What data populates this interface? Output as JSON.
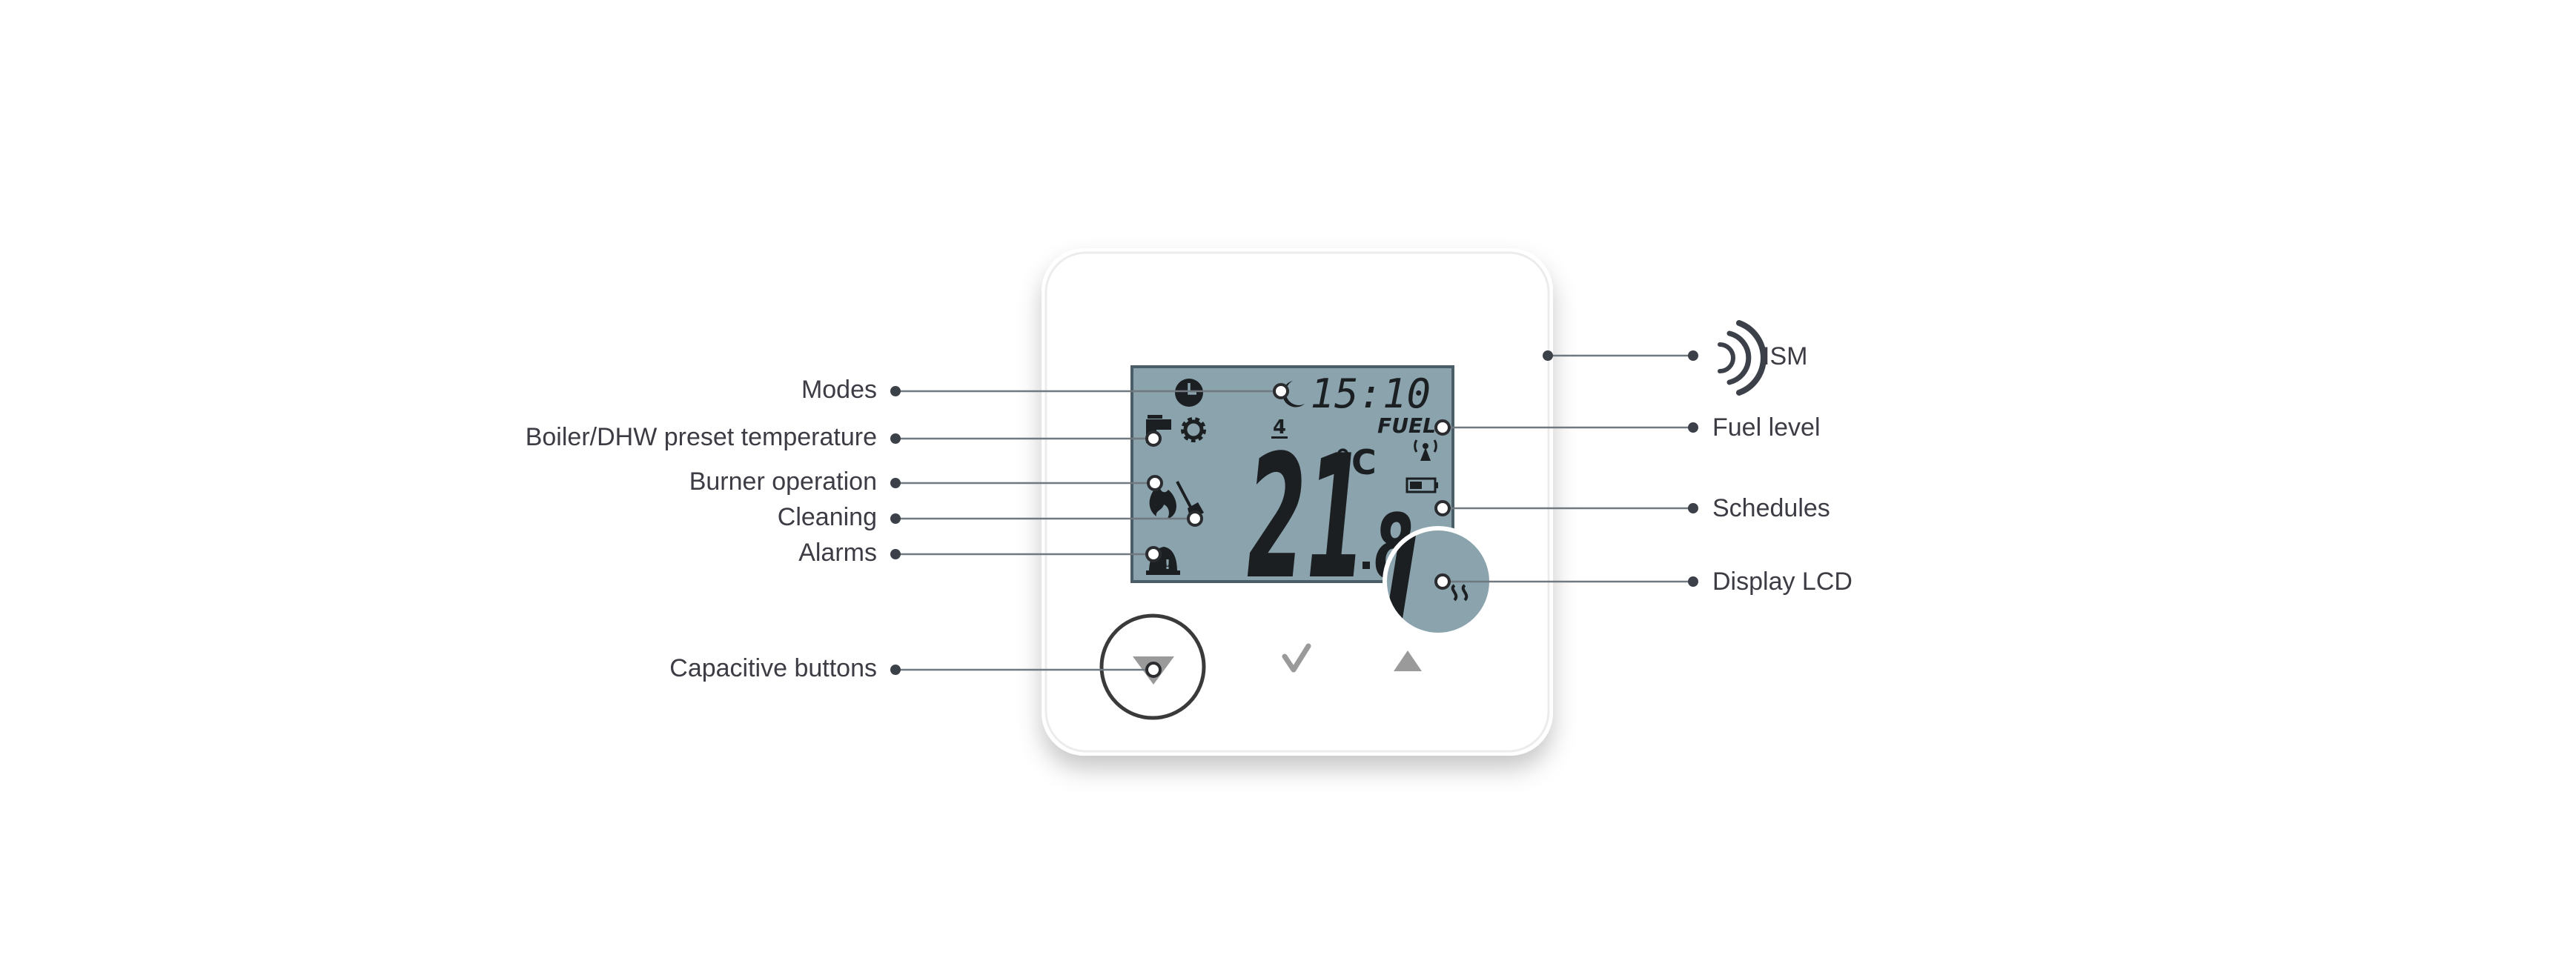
{
  "lcd": {
    "time": "15:10",
    "preset_number": "4",
    "fuel_text": "FUEL",
    "temperature_integer": "21",
    "temperature_decimal": "8",
    "temperature_unit": "°C"
  },
  "callouts_left": [
    {
      "id": "modes",
      "label": "Modes"
    },
    {
      "id": "boiler",
      "label": "Boiler/DHW preset temperature"
    },
    {
      "id": "burner",
      "label": "Burner operation"
    },
    {
      "id": "cleaning",
      "label": "Cleaning"
    },
    {
      "id": "alarms",
      "label": "Alarms"
    },
    {
      "id": "buttons",
      "label": "Capacitive buttons"
    }
  ],
  "callouts_right": [
    {
      "id": "ism",
      "label": "ISM"
    },
    {
      "id": "fuel",
      "label": "Fuel level"
    },
    {
      "id": "schedules",
      "label": "Schedules"
    },
    {
      "id": "display",
      "label": "Display LCD"
    }
  ],
  "colors": {
    "lcd_bg": "#8aa3ad",
    "lcd_border": "#4b5e68",
    "segment": "#1c1f22",
    "leader": "#707880",
    "dot": "#3c4048",
    "device": "#ffffff",
    "button_ring": "#3a3a3a",
    "button_glyph": "#9a9a9a"
  }
}
